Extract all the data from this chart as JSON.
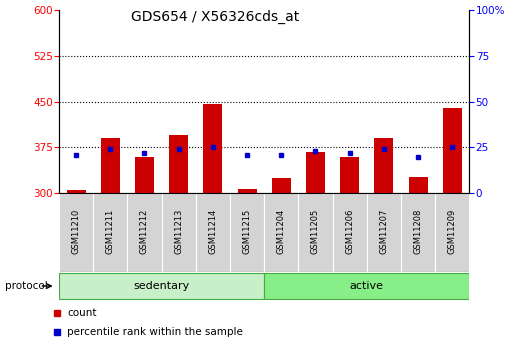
{
  "title": "GDS654 / X56326cds_at",
  "samples": [
    "GSM11210",
    "GSM11211",
    "GSM11212",
    "GSM11213",
    "GSM11214",
    "GSM11215",
    "GSM11204",
    "GSM11205",
    "GSM11206",
    "GSM11207",
    "GSM11208",
    "GSM11209"
  ],
  "count_values": [
    305,
    390,
    360,
    395,
    447,
    307,
    325,
    368,
    360,
    390,
    327,
    440
  ],
  "percentile_values": [
    21,
    24,
    22,
    24,
    25,
    21,
    21,
    23,
    22,
    24,
    20,
    25
  ],
  "ymin": 300,
  "ymax": 600,
  "y_ticks": [
    300,
    375,
    450,
    525,
    600
  ],
  "y2_ticks": [
    0,
    25,
    50,
    75,
    100
  ],
  "grid_lines": [
    375,
    450,
    525
  ],
  "bar_color": "#cc0000",
  "dot_color": "#0000cc",
  "bar_width": 0.55,
  "group_labels": [
    "sedentary",
    "active"
  ],
  "group_colors_light": [
    "#c8f0c8",
    "#88ee88"
  ],
  "group_boundaries": [
    0,
    6,
    12
  ],
  "protocol_label": "protocol",
  "legend_count": "count",
  "legend_percentile": "percentile rank within the sample",
  "title_fontsize": 10,
  "tick_fontsize": 7.5,
  "sample_fontsize": 6,
  "label_fontsize": 8
}
